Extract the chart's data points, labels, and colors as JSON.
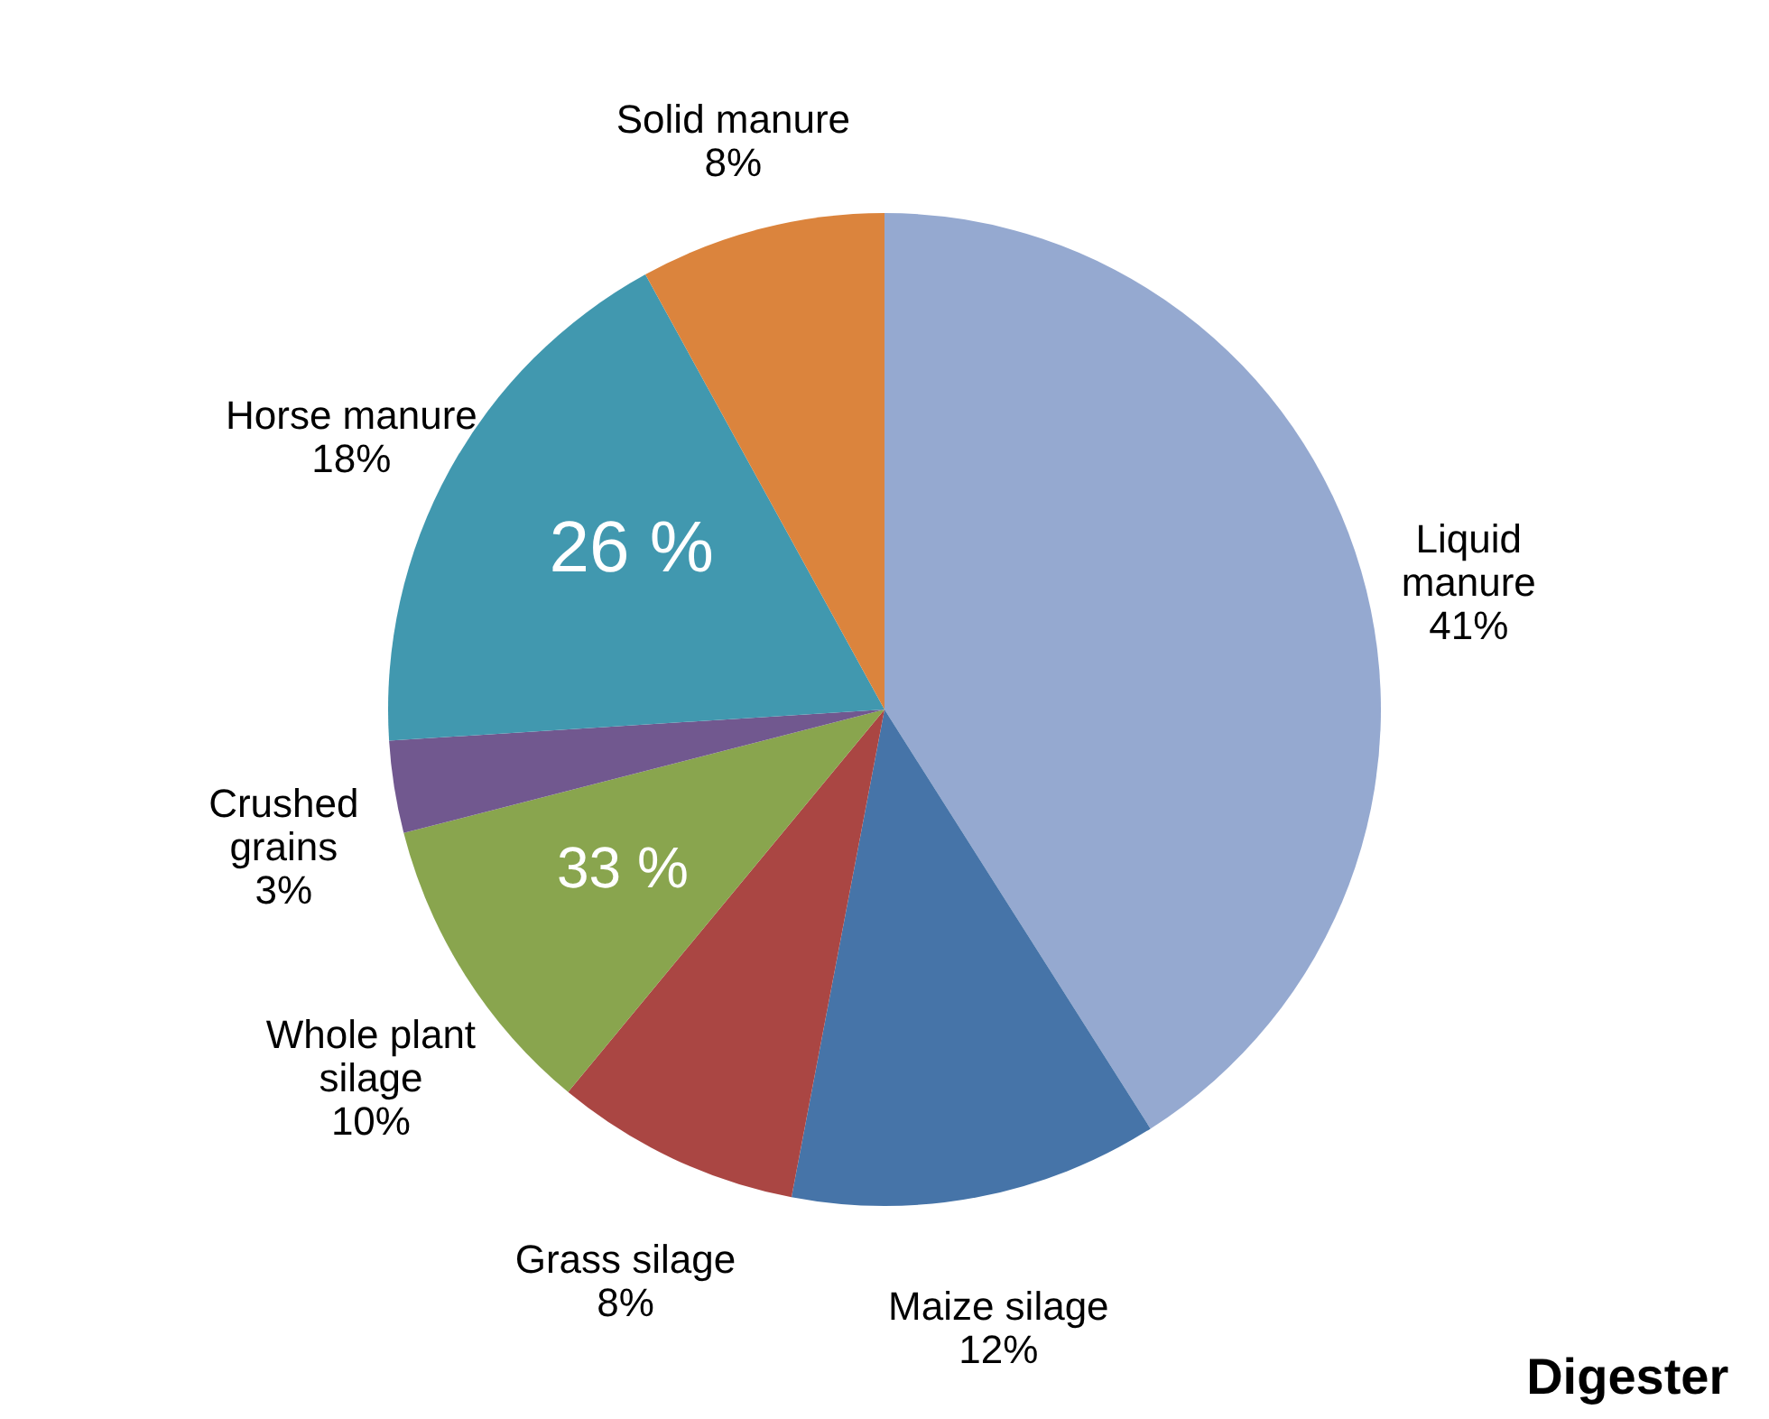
{
  "chart_data": {
    "type": "pie",
    "categories": [
      "Liquid manure",
      "Maize silage",
      "Grass silage",
      "Whole plant silage",
      "Crushed grains",
      "Horse manure",
      "Solid manure"
    ],
    "values": [
      41,
      12,
      8,
      10,
      3,
      18,
      8
    ],
    "value_labels": [
      "41%",
      "12%",
      "8%",
      "10%",
      "3%",
      "18%",
      "8%"
    ],
    "colors": [
      "#95a9d0",
      "#4674a8",
      "#aa4643",
      "#89a54e",
      "#71588f",
      "#4198af",
      "#db843d"
    ],
    "annotations": [
      "26 %",
      "33 %",
      "Digester"
    ]
  }
}
